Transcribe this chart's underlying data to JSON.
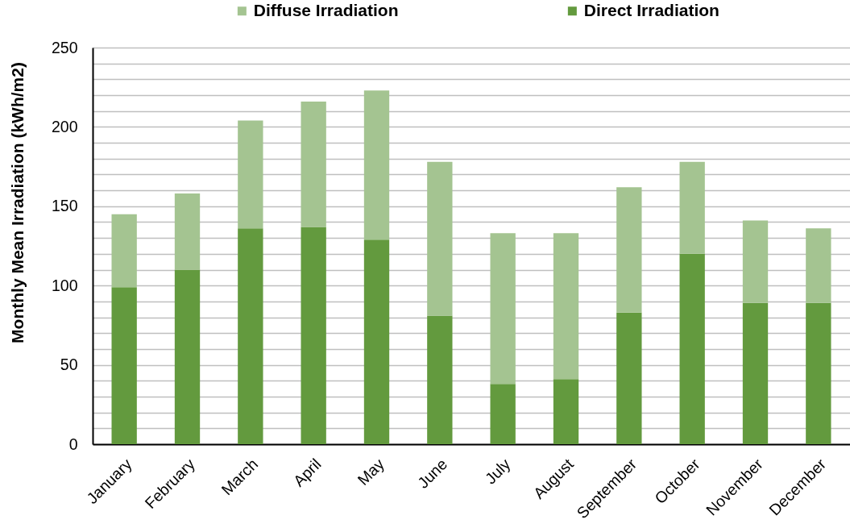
{
  "chart_data": {
    "type": "bar",
    "stacked": true,
    "ylabel": "Monthly Mean Irradiation (kWh/m2)",
    "categories": [
      "January",
      "February",
      "March",
      "April",
      "May",
      "June",
      "July",
      "August",
      "September",
      "October",
      "November",
      "December"
    ],
    "series": [
      {
        "name": "Direct Irradiation",
        "color": "#639a3e",
        "values": [
          99,
          110,
          136,
          137,
          129,
          81,
          38,
          41,
          83,
          120,
          89,
          89
        ]
      },
      {
        "name": "Diffuse Irradiation",
        "color": "#a4c491",
        "values": [
          46,
          48,
          68,
          79,
          94,
          97,
          95,
          92,
          79,
          58,
          52,
          47
        ]
      }
    ],
    "ylim": [
      0,
      250
    ],
    "yticks": [
      0,
      {
        "value": 10,
        "label": null
      },
      {
        "value": 20,
        "label": null
      },
      {
        "value": 30,
        "label": null
      },
      {
        "value": 40,
        "label": null
      },
      50,
      {
        "value": 60,
        "label": null
      },
      {
        "value": 70,
        "label": null
      },
      {
        "value": 80,
        "label": null
      },
      {
        "value": 90,
        "label": null
      },
      100,
      {
        "value": 110,
        "label": null
      },
      {
        "value": 120,
        "label": null
      },
      {
        "value": 130,
        "label": null
      },
      {
        "value": 140,
        "label": null
      },
      150,
      {
        "value": 160,
        "label": null
      },
      {
        "value": 170,
        "label": null
      },
      {
        "value": 180,
        "label": null
      },
      {
        "value": 190,
        "label": null
      },
      200,
      {
        "value": 210,
        "label": null
      },
      {
        "value": 220,
        "label": null
      },
      {
        "value": 230,
        "label": null
      },
      {
        "value": 240,
        "label": null
      },
      250
    ],
    "grid": "y",
    "legend": "top"
  }
}
